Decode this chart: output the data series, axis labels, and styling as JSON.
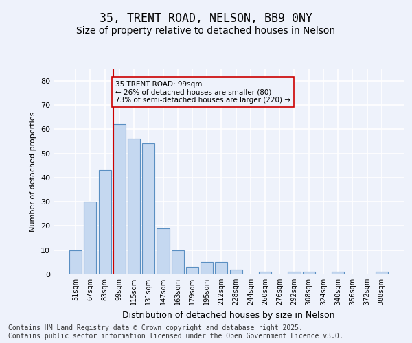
{
  "title": "35, TRENT ROAD, NELSON, BB9 0NY",
  "subtitle": "Size of property relative to detached houses in Nelson",
  "xlabel": "Distribution of detached houses by size in Nelson",
  "ylabel": "Number of detached properties",
  "bar_values": [
    10,
    30,
    43,
    62,
    56,
    54,
    19,
    10,
    3,
    5,
    5,
    2,
    0,
    1,
    0,
    1,
    1,
    0,
    1,
    0,
    0,
    1
  ],
  "bin_labels": [
    "51sqm",
    "67sqm",
    "83sqm",
    "99sqm",
    "115sqm",
    "131sqm",
    "147sqm",
    "163sqm",
    "179sqm",
    "195sqm",
    "212sqm",
    "228sqm",
    "244sqm",
    "260sqm",
    "276sqm",
    "292sqm",
    "308sqm",
    "324sqm",
    "340sqm",
    "356sqm",
    "372sqm",
    "388sqm"
  ],
  "bar_color": "#c5d8f0",
  "bar_edge_color": "#5a8fc2",
  "background_color": "#eef2fb",
  "grid_color": "#ffffff",
  "property_line_index": 3,
  "property_line_color": "#cc0000",
  "annotation_text": "35 TRENT ROAD: 99sqm\n← 26% of detached houses are smaller (80)\n73% of semi-detached houses are larger (220) →",
  "annotation_box_color": "#cc0000",
  "footer_text": "Contains HM Land Registry data © Crown copyright and database right 2025.\nContains public sector information licensed under the Open Government Licence v3.0.",
  "ylim": [
    0,
    85
  ],
  "yticks": [
    0,
    10,
    20,
    30,
    40,
    50,
    60,
    70,
    80
  ],
  "title_fontsize": 12,
  "subtitle_fontsize": 10,
  "footer_fontsize": 7
}
